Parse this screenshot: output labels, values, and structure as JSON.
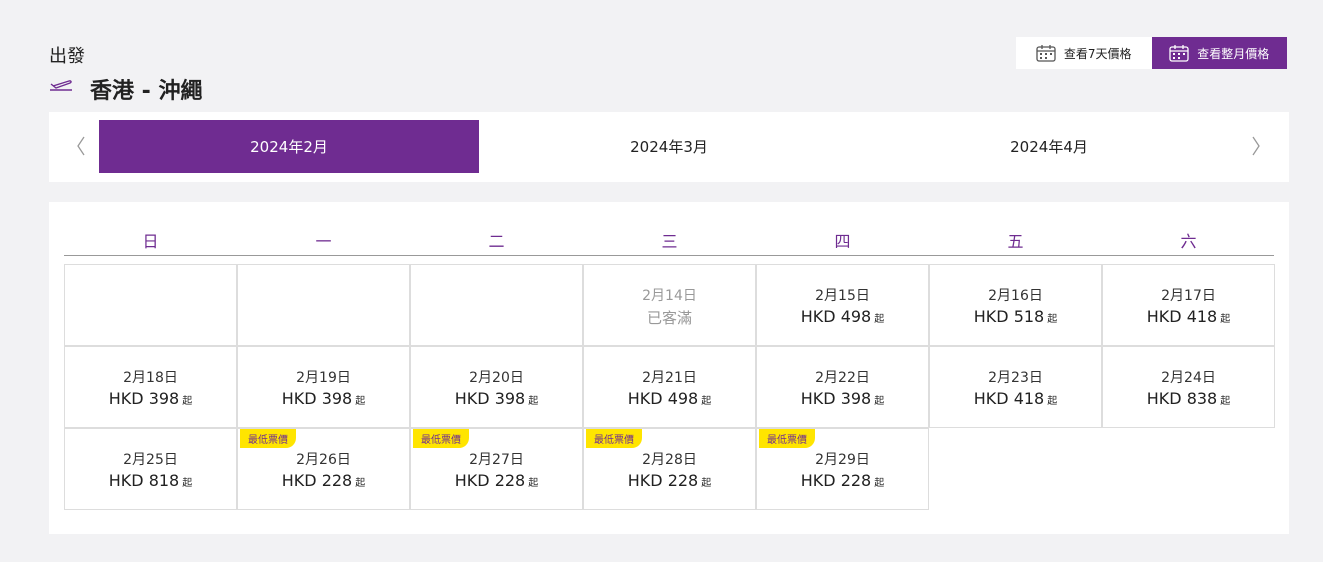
{
  "header": {
    "label": "出發",
    "route": "香港 - 沖繩"
  },
  "view_buttons": [
    "查看7天價格",
    "查看整月價格"
  ],
  "months": [
    "2024年2月",
    "2024年3月",
    "2024年4月"
  ],
  "calendar": {
    "weekdays": [
      "日",
      "一",
      "二",
      "三",
      "四",
      "五",
      "六"
    ],
    "price_suffix": "起",
    "badge_label": "最低票價",
    "weeks": [
      [
        null,
        null,
        null,
        {
          "date": "2月14日",
          "status": "已客滿"
        },
        {
          "date": "2月15日",
          "price": "HKD 498"
        },
        {
          "date": "2月16日",
          "price": "HKD 518"
        },
        {
          "date": "2月17日",
          "price": "HKD 418"
        }
      ],
      [
        {
          "date": "2月18日",
          "price": "HKD 398"
        },
        {
          "date": "2月19日",
          "price": "HKD 398"
        },
        {
          "date": "2月20日",
          "price": "HKD 398"
        },
        {
          "date": "2月21日",
          "price": "HKD 498"
        },
        {
          "date": "2月22日",
          "price": "HKD 398"
        },
        {
          "date": "2月23日",
          "price": "HKD 418"
        },
        {
          "date": "2月24日",
          "price": "HKD 838"
        }
      ],
      [
        {
          "date": "2月25日",
          "price": "HKD 818"
        },
        {
          "date": "2月26日",
          "price": "HKD 228",
          "lowest": true
        },
        {
          "date": "2月27日",
          "price": "HKD 228",
          "lowest": true
        },
        {
          "date": "2月28日",
          "price": "HKD 228",
          "lowest": true
        },
        {
          "date": "2月29日",
          "price": "HKD 228",
          "lowest": true
        }
      ]
    ]
  }
}
